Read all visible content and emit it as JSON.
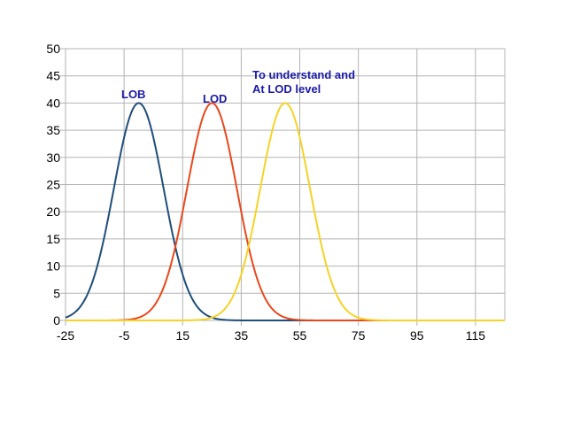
{
  "chart_data": {
    "type": "line",
    "xlim": [
      -25,
      125
    ],
    "ylim": [
      0,
      50
    ],
    "x_ticks": [
      -25,
      -5,
      15,
      35,
      55,
      75,
      95,
      115
    ],
    "y_ticks": [
      0,
      5,
      10,
      15,
      20,
      25,
      30,
      35,
      40,
      45,
      50
    ],
    "grid": true,
    "legend": "none",
    "series": [
      {
        "name": "LOB",
        "color": "#1f4e79",
        "peak_x": 0,
        "peak_y": 40,
        "sd": 8.5
      },
      {
        "name": "LOD",
        "color": "#e8481c",
        "peak_x": 25,
        "peak_y": 40,
        "sd": 8.5
      },
      {
        "name": "To understand and At LOD level",
        "color": "#f5d327",
        "peak_x": 50,
        "peak_y": 40,
        "sd": 8.5
      }
    ],
    "annotations": [
      {
        "text": "LOB",
        "color": "#1a1aa6"
      },
      {
        "text": "LOD",
        "color": "#1a1aa6"
      },
      {
        "text": "To understand and",
        "color": "#1a1aa6"
      },
      {
        "text": "At LOD level",
        "color": "#1a1aa6"
      }
    ]
  }
}
